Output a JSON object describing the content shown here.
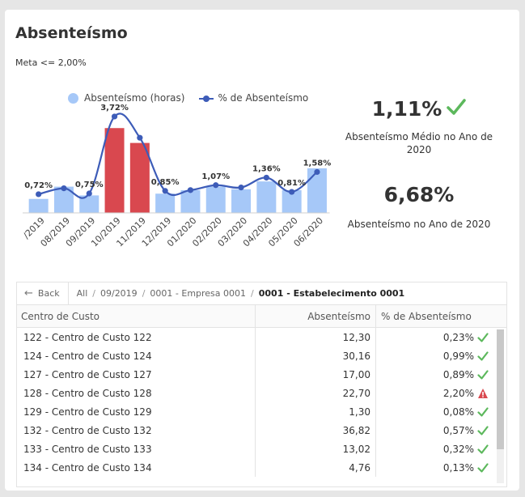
{
  "title": "Absenteísmo",
  "meta": "Meta <= 2,00%",
  "legend": {
    "bars": "Absenteísmo (horas)",
    "line": "% de Absenteísmo"
  },
  "kpis": [
    {
      "value": "1,11%",
      "label": "Absenteísmo Médio no Ano de 2020",
      "icon": "check-icon"
    },
    {
      "value": "6,68%",
      "label": "Absenteísmo no Ano de 2020"
    }
  ],
  "colors": {
    "bar_ok": "#a6c8f8",
    "bar_alert": "#d9484f",
    "line": "#3d5cb8",
    "check": "#5cb85c",
    "warning": "#d9484f"
  },
  "chart_data": {
    "type": "bar",
    "categories": [
      "/2019",
      "08/2019",
      "09/2019",
      "10/2019",
      "11/2019",
      "12/2019",
      "01/2020",
      "02/2020",
      "03/2020",
      "04/2020",
      "05/2020",
      "06/2020"
    ],
    "series": [
      {
        "name": "Absenteísmo (horas)",
        "values": [
          16,
          30,
          20,
          97,
          80,
          22,
          26,
          30,
          27,
          36,
          26,
          51
        ],
        "alert": [
          false,
          false,
          false,
          true,
          true,
          false,
          false,
          false,
          false,
          false,
          false,
          false
        ]
      },
      {
        "name": "% de Absenteísmo",
        "values": [
          0.72,
          0.95,
          0.75,
          3.72,
          2.9,
          0.85,
          0.88,
          1.07,
          0.98,
          1.36,
          0.81,
          1.58
        ]
      }
    ],
    "data_labels": [
      "0,72%",
      "",
      "0,75%",
      "3,72%",
      "",
      "0,85%",
      "",
      "1,07%",
      "",
      "1,36%",
      "0,81%",
      "1,58%"
    ]
  },
  "breadcrumb": {
    "back": "Back",
    "items": [
      "All",
      "09/2019",
      "0001 - Empresa 0001",
      "0001 - Estabelecimento 0001"
    ]
  },
  "table": {
    "columns": [
      "Centro de Custo",
      "Absenteísmo",
      "% de Absenteísmo"
    ],
    "rows": [
      {
        "name": "122 - Centro de Custo 122",
        "abs": "12,30",
        "pct": "0,23%",
        "status": "ok"
      },
      {
        "name": "124 - Centro de Custo 124",
        "abs": "30,16",
        "pct": "0,99%",
        "status": "ok"
      },
      {
        "name": "127 - Centro de Custo 127",
        "abs": "17,00",
        "pct": "0,89%",
        "status": "ok"
      },
      {
        "name": "128 - Centro de Custo 128",
        "abs": "22,70",
        "pct": "2,20%",
        "status": "warning"
      },
      {
        "name": "129 - Centro de Custo 129",
        "abs": "1,30",
        "pct": "0,08%",
        "status": "ok"
      },
      {
        "name": "132 - Centro de Custo 132",
        "abs": "36,82",
        "pct": "0,57%",
        "status": "ok"
      },
      {
        "name": "133 - Centro de Custo 133",
        "abs": "13,02",
        "pct": "0,32%",
        "status": "ok"
      },
      {
        "name": "134 - Centro de Custo 134",
        "abs": "4,76",
        "pct": "0,13%",
        "status": "ok"
      }
    ]
  }
}
